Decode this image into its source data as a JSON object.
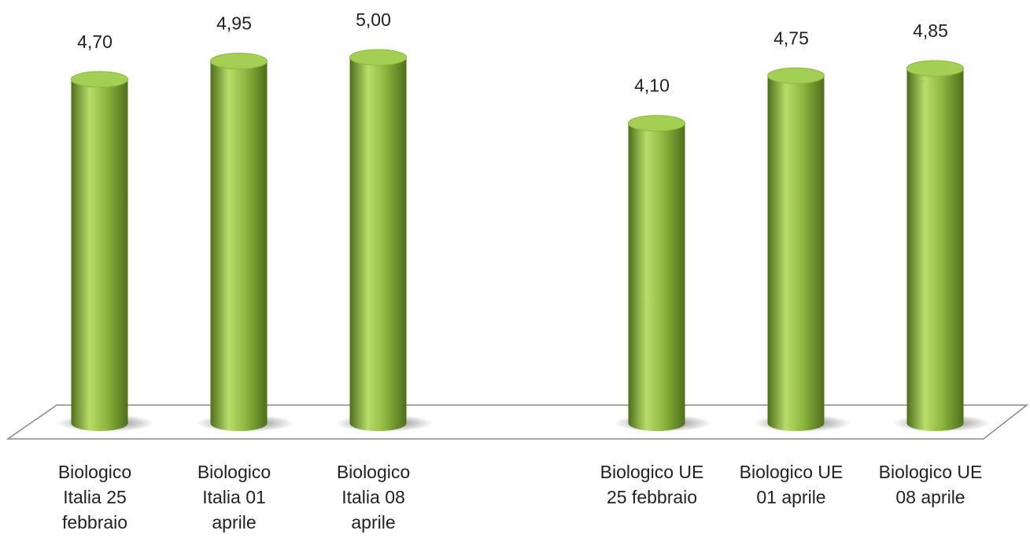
{
  "chart_data": {
    "type": "bar",
    "categories": [
      "Biologico\nItalia 25\nfebbraio",
      "Biologico\nItalia 01\naprile",
      "Biologico\nItalia  08\naprile",
      "",
      "Biologico UE\n25 febbraio",
      "Biologico UE\n01 aprile",
      "Biologico UE\n08 aprile"
    ],
    "values": [
      4.7,
      4.95,
      5.0,
      null,
      4.1,
      4.75,
      4.85
    ],
    "value_labels": [
      "4,70",
      "4,95",
      "5,00",
      "",
      "4,10",
      "4,75",
      "4,85"
    ],
    "title": "",
    "xlabel": "",
    "ylabel": "",
    "ylim": [
      0,
      5.0
    ],
    "grid": false,
    "legend": "none",
    "bar_style": "3d-cylinder",
    "colors": {
      "bar_light": "#b9dc6a",
      "bar_mid": "#8db73e",
      "bar_dark": "#4f6e1b",
      "bar_top": "#a4cf55",
      "floor_stroke": "#8a8a8a"
    }
  }
}
